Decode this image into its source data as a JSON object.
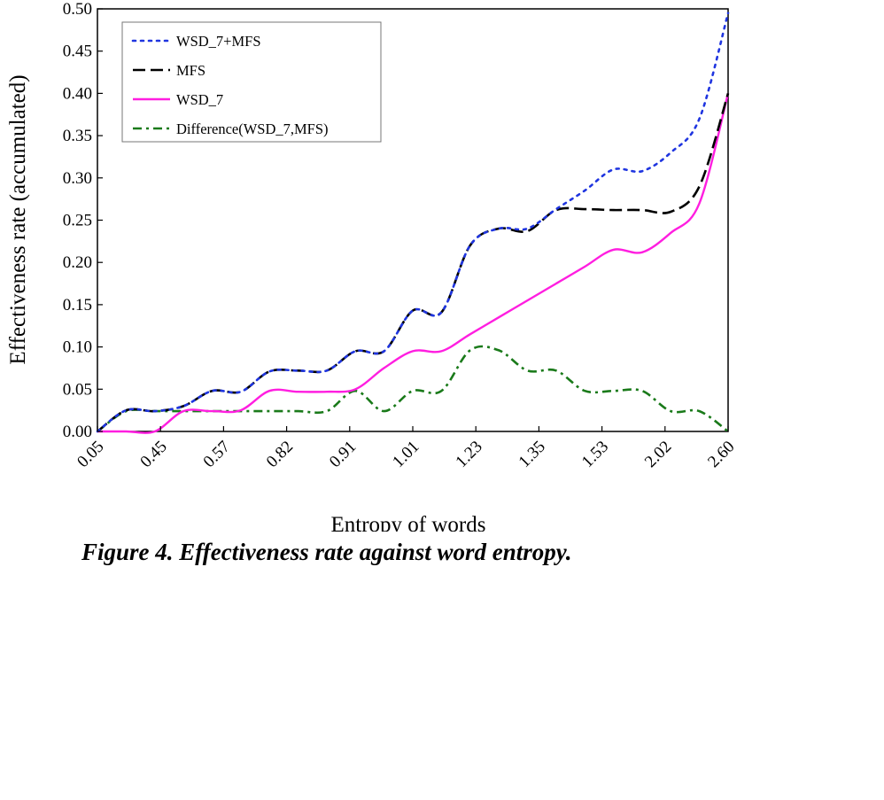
{
  "chart_data": {
    "type": "line",
    "title": "",
    "xlabel": "Entropy of words",
    "ylabel": "Effectiveness rate (accumulated)",
    "x_tick_labels": [
      "0.05",
      "0.45",
      "0.57",
      "0.82",
      "0.91",
      "1.01",
      "1.23",
      "1.35",
      "1.53",
      "2.02",
      "2.60"
    ],
    "y_tick_labels": [
      "0.00",
      "0.05",
      "0.10",
      "0.15",
      "0.20",
      "0.25",
      "0.30",
      "0.35",
      "0.40",
      "0.45",
      "0.50"
    ],
    "ylim": [
      0,
      0.5
    ],
    "grid": false,
    "legend_position": "top-left",
    "x_index": [
      0,
      0.5,
      1,
      1.5,
      2,
      2.5,
      3,
      3.5,
      4,
      4.5,
      5,
      5.5,
      6,
      6.5,
      7,
      7.5,
      8,
      8.5,
      9,
      9.5,
      10,
      10.5,
      11
    ],
    "series": [
      {
        "name": "WSD_7+MFS",
        "color": "#1f35e0",
        "dash": "dot",
        "values": [
          0.0,
          0.025,
          0.024,
          0.03,
          0.048,
          0.047,
          0.071,
          0.072,
          0.072,
          0.095,
          0.095,
          0.143,
          0.141,
          0.22,
          0.24,
          0.24,
          0.263,
          0.285,
          0.31,
          0.308,
          0.33,
          0.37,
          0.495
        ]
      },
      {
        "name": "MFS",
        "color": "#000000",
        "dash": "dash",
        "values": [
          0.0,
          0.025,
          0.024,
          0.03,
          0.048,
          0.047,
          0.071,
          0.072,
          0.072,
          0.095,
          0.095,
          0.143,
          0.141,
          0.22,
          0.24,
          0.237,
          0.262,
          0.263,
          0.262,
          0.262,
          0.26,
          0.29,
          0.4
        ]
      },
      {
        "name": "WSD_7",
        "color": "#ff1ee0",
        "dash": "solid",
        "values": [
          0.0,
          0.0,
          0.0,
          0.024,
          0.024,
          0.025,
          0.048,
          0.047,
          0.047,
          0.05,
          0.075,
          0.095,
          0.095,
          0.115,
          0.135,
          0.155,
          0.175,
          0.195,
          0.215,
          0.212,
          0.235,
          0.27,
          0.4
        ]
      },
      {
        "name": "Difference(WSD_7,MFS)",
        "color": "#1a7a1a",
        "dash": "dashdot",
        "values": [
          0.0,
          0.024,
          0.024,
          0.024,
          0.024,
          0.024,
          0.024,
          0.024,
          0.024,
          0.048,
          0.024,
          0.048,
          0.048,
          0.096,
          0.096,
          0.072,
          0.072,
          0.048,
          0.048,
          0.048,
          0.024,
          0.024,
          0.0
        ]
      }
    ]
  },
  "caption": "Figure 4. Effectiveness rate against word entropy."
}
